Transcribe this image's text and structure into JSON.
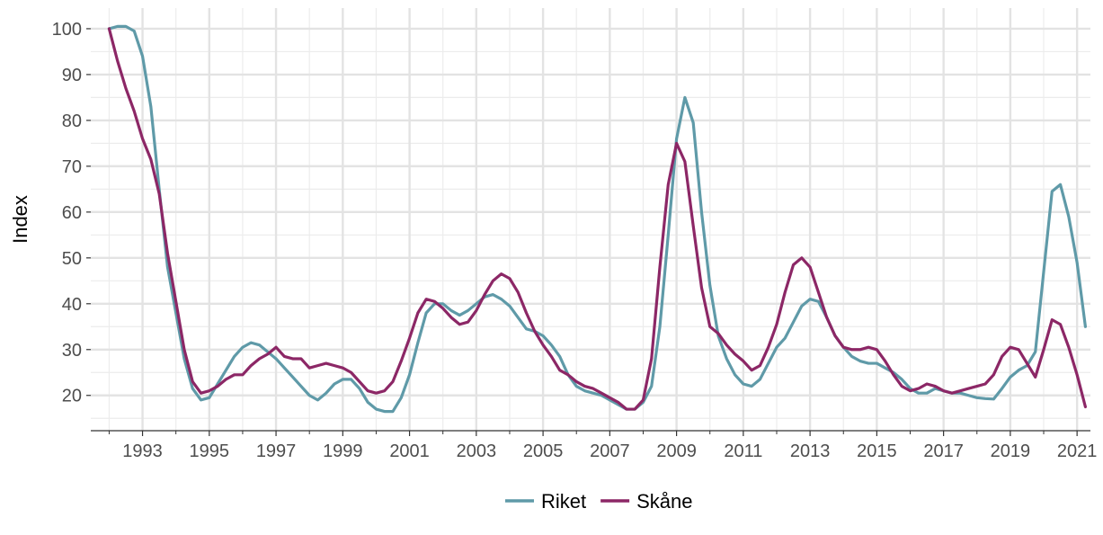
{
  "chart_data": {
    "type": "line",
    "ylabel": "Index",
    "xlabel": "",
    "xlim": [
      1991.45,
      2021.4
    ],
    "ylim": [
      12.3,
      104.5
    ],
    "x_ticks": [
      1993,
      1995,
      1997,
      1999,
      2001,
      2003,
      2005,
      2007,
      2009,
      2011,
      2013,
      2015,
      2017,
      2019,
      2021
    ],
    "y_ticks": [
      20,
      30,
      40,
      50,
      60,
      70,
      80,
      90,
      100
    ],
    "grid": true,
    "legend_position": "bottom",
    "x_start": 1992.0,
    "x_step": 0.25,
    "series": [
      {
        "name": "Riket",
        "color": "#5f9aa8",
        "values": [
          100,
          100.5,
          100.5,
          99.5,
          94,
          83,
          65,
          48,
          38,
          28,
          21.5,
          19,
          19.5,
          22.5,
          25.5,
          28.5,
          30.5,
          31.5,
          31,
          29.5,
          28,
          26,
          24,
          22,
          20,
          19,
          20.5,
          22.5,
          23.5,
          23.5,
          21.5,
          18.5,
          17,
          16.5,
          16.5,
          19.5,
          24.5,
          31.5,
          38,
          40,
          40,
          38.5,
          37.5,
          38.5,
          40,
          41.5,
          42,
          41,
          39.5,
          37,
          34.5,
          34,
          33,
          31,
          28.5,
          24.5,
          22,
          21,
          20.5,
          20,
          19,
          18,
          17,
          17,
          18.5,
          22,
          35,
          55,
          76,
          85,
          79.5,
          60,
          44,
          33,
          28,
          24.5,
          22.5,
          22,
          23.5,
          27,
          30.5,
          32.5,
          36,
          39.5,
          41,
          40.5,
          37,
          33,
          30.5,
          28.5,
          27.5,
          27,
          27,
          26,
          25,
          23.5,
          21.5,
          20.5,
          20.5,
          21.5,
          21,
          20.5,
          20.5,
          20,
          19.5,
          19.3,
          19.2,
          21.5,
          24,
          25.5,
          26.5,
          29.5,
          47,
          64.5,
          66,
          59,
          49,
          35
        ]
      },
      {
        "name": "Skåne",
        "color": "#8c2766",
        "values": [
          100,
          93,
          87,
          82,
          76,
          71.5,
          64,
          51,
          40.5,
          30,
          23,
          20.5,
          21,
          22,
          23.5,
          24.5,
          24.5,
          26.5,
          28,
          29,
          30.5,
          28.5,
          28,
          28,
          26,
          26.5,
          27,
          26.5,
          26,
          25,
          23,
          21,
          20.5,
          21,
          23,
          27.5,
          32.5,
          38,
          41,
          40.5,
          39,
          37,
          35.5,
          36,
          38.5,
          42,
          45,
          46.5,
          45.5,
          42.5,
          38,
          34,
          31,
          28.5,
          25.5,
          24.5,
          23,
          22,
          21.5,
          20.5,
          19.5,
          18.5,
          17,
          17,
          19,
          28,
          48,
          66,
          75,
          71,
          57,
          43.5,
          35,
          33.5,
          31,
          29,
          27.5,
          25.5,
          26.5,
          30.5,
          35.5,
          42.5,
          48.5,
          50,
          48,
          42.5,
          37,
          33,
          30.5,
          30,
          30,
          30.5,
          30,
          27.5,
          24.5,
          22,
          21,
          21.5,
          22.5,
          22,
          21,
          20.5,
          21,
          21.5,
          22,
          22.5,
          24.5,
          28.5,
          30.5,
          30,
          27,
          24,
          30,
          36.5,
          35.5,
          30.5,
          24.5,
          17.5
        ]
      }
    ]
  }
}
